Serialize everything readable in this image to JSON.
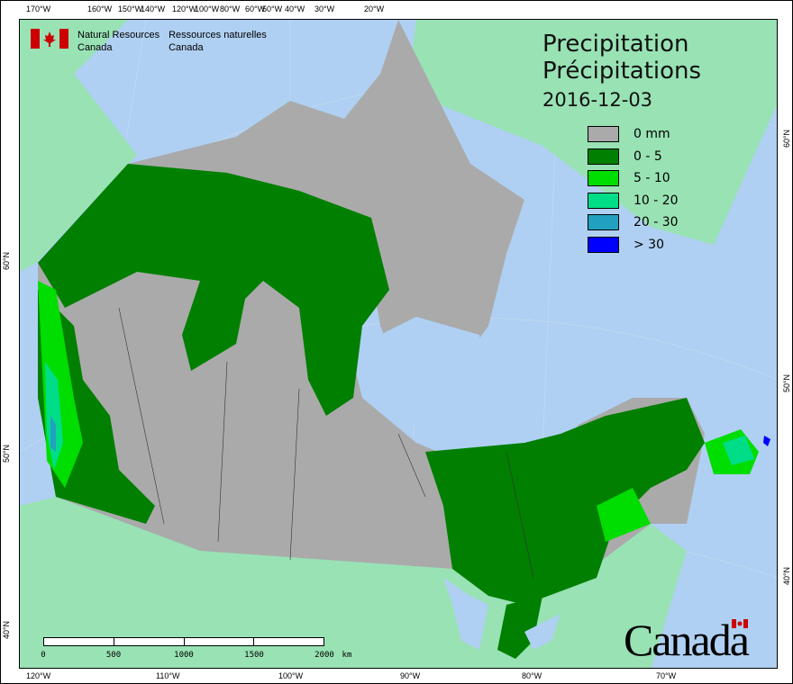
{
  "header": {
    "agency_en": "Natural Resources",
    "agency_en2": "Canada",
    "agency_fr": "Ressources naturelles",
    "agency_fr2": "Canada"
  },
  "title": {
    "en": "Precipitation",
    "fr": "Précipitations",
    "date": "2016-12-03"
  },
  "legend": [
    {
      "label": "0 mm",
      "color": "#aaaaaa"
    },
    {
      "label": "0 - 5",
      "color": "#007f00"
    },
    {
      "label": "5 - 10",
      "color": "#00dd00"
    },
    {
      "label": "10 - 20",
      "color": "#00dd88"
    },
    {
      "label": "20 - 30",
      "color": "#22a0c0"
    },
    {
      "label": "> 30",
      "color": "#0000ff"
    }
  ],
  "top_ticks": [
    "170°W",
    "160°W",
    "150°W",
    "140°W",
    "120°W",
    "100°W",
    "80°W",
    "60°W",
    "50°W",
    "40°W",
    "30°W",
    "20°W"
  ],
  "bottom_ticks": [
    "120°W",
    "110°W",
    "100°W",
    "90°W",
    "80°W",
    "70°W"
  ],
  "left_ticks": [
    "60°N",
    "50°N",
    "40°N"
  ],
  "right_ticks": [
    "60°N",
    "50°N",
    "40°N"
  ],
  "scale": {
    "labels": [
      "0",
      "500",
      "1000",
      "1500",
      "2000"
    ],
    "unit": "km"
  },
  "wordmark": "Canada",
  "colors": {
    "water": "#afd0f2",
    "foreign_land": "#98e2b4",
    "no_precip": "#aaaaaa"
  }
}
